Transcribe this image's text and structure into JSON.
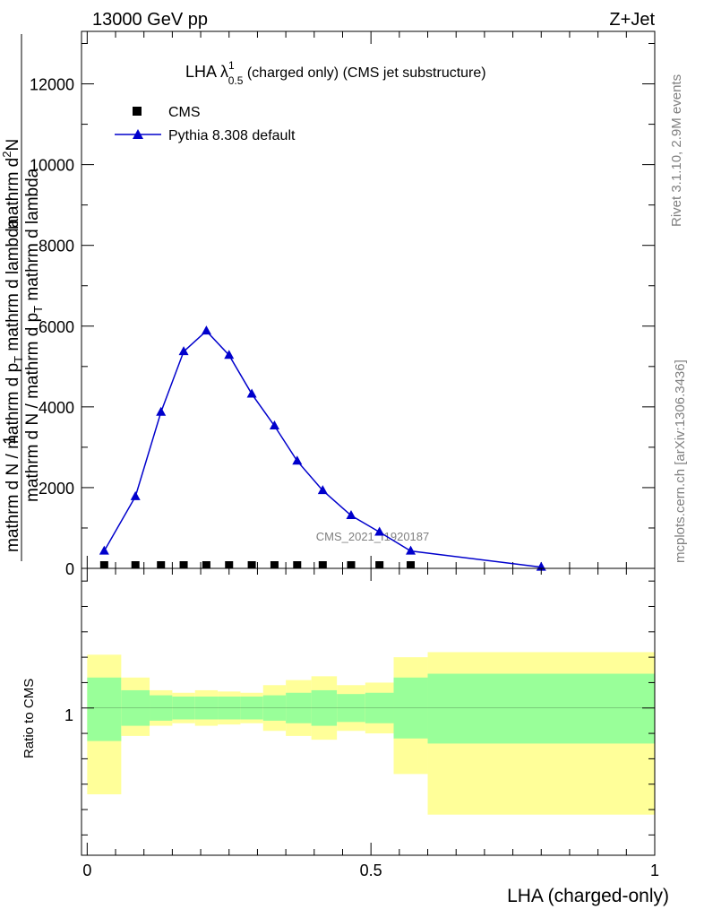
{
  "header": {
    "energy": "13000 GeV pp",
    "process": "Z+Jet"
  },
  "plot_title": {
    "base": "LHA λ",
    "sup": "1",
    "sub": "0.5",
    "rest": " (charged only) (CMS jet substructure)"
  },
  "side_labels": {
    "rivet": "Rivet 3.1.10,  2.9M events",
    "mcplots": "mcplots.cern.ch [arXiv:1306.3436]"
  },
  "watermark": "CMS_2021_I1920187",
  "y_label": {
    "numerator_one": "1",
    "numerator_frac": "mathrm d N / mathrm d p",
    "numerator_frac_sub": "T",
    "numerator_frac_tail": " mathrm d lambda",
    "denominator": "mathrm d N / mathrm d p",
    "denominator_sub": "T",
    "denominator_tail": " mathrm d lambda",
    "top_line": "mathrm d",
    "top_sup": "2",
    "top_tail": "N"
  },
  "ratio_ylabel": "Ratio to CMS",
  "x_label": "LHA (charged-only)",
  "colors": {
    "mc": "#0000cc",
    "data": "#000000",
    "band_inner": "#99ff99",
    "band_outer": "#ffff99"
  },
  "chart_data": [
    {
      "type": "line",
      "title": "LHA λ^1_0.5 (charged only) (CMS jet substructure)",
      "xlabel": "LHA (charged-only)",
      "ylabel": "1/(mathrm d N / mathrm d p_T mathrm d lambda) mathrm d^2N/(mathrm d p_T mathrm d lambda)",
      "xlim": [
        -0.01,
        1.0
      ],
      "ylim": [
        0,
        13300
      ],
      "yticks": [
        0,
        2000,
        4000,
        6000,
        8000,
        10000,
        12000
      ],
      "ytick_labels": [
        "0",
        "2000",
        "4000",
        "6000",
        "8000",
        "10000",
        "12000"
      ],
      "legend": {
        "placement": "top-left",
        "entries": [
          "CMS",
          "Pythia 8.308 default"
        ]
      },
      "series": [
        {
          "name": "CMS",
          "marker": "square",
          "x": [
            0.03,
            0.085,
            0.13,
            0.17,
            0.21,
            0.25,
            0.29,
            0.33,
            0.37,
            0.415,
            0.465,
            0.515,
            0.57
          ],
          "y": [
            20,
            20,
            20,
            20,
            20,
            20,
            20,
            20,
            20,
            20,
            20,
            20,
            20
          ]
        },
        {
          "name": "Pythia 8.308 default",
          "marker": "triangle",
          "x": [
            0.03,
            0.085,
            0.13,
            0.17,
            0.21,
            0.25,
            0.29,
            0.33,
            0.37,
            0.415,
            0.465,
            0.515,
            0.57,
            0.8
          ],
          "y": [
            430,
            1780,
            3870,
            5370,
            5880,
            5280,
            4320,
            3530,
            2660,
            1930,
            1310,
            900,
            430,
            30
          ]
        }
      ]
    },
    {
      "type": "area",
      "ylabel": "Ratio to CMS",
      "xlabel": "LHA (charged-only)",
      "xlim": [
        -0.01,
        1.0
      ],
      "ylim": [
        0.42,
        1.55
      ],
      "xticks": [
        0,
        0.5,
        1
      ],
      "xtick_labels": [
        "0",
        "0.5",
        "1"
      ],
      "yticks": [
        1
      ],
      "ytick_labels": [
        "1"
      ],
      "bins": [
        {
          "lo": 0.0,
          "hi": 0.06,
          "inner": [
            0.87,
            1.12
          ],
          "outer": [
            0.66,
            1.21
          ]
        },
        {
          "lo": 0.06,
          "hi": 0.11,
          "inner": [
            0.93,
            1.07
          ],
          "outer": [
            0.89,
            1.12
          ]
        },
        {
          "lo": 0.11,
          "hi": 0.15,
          "inner": [
            0.95,
            1.05
          ],
          "outer": [
            0.93,
            1.07
          ]
        },
        {
          "lo": 0.15,
          "hi": 0.19,
          "inner": [
            0.955,
            1.045
          ],
          "outer": [
            0.94,
            1.06
          ]
        },
        {
          "lo": 0.19,
          "hi": 0.23,
          "inner": [
            0.955,
            1.045
          ],
          "outer": [
            0.93,
            1.07
          ]
        },
        {
          "lo": 0.23,
          "hi": 0.27,
          "inner": [
            0.955,
            1.045
          ],
          "outer": [
            0.935,
            1.065
          ]
        },
        {
          "lo": 0.27,
          "hi": 0.31,
          "inner": [
            0.955,
            1.045
          ],
          "outer": [
            0.94,
            1.06
          ]
        },
        {
          "lo": 0.31,
          "hi": 0.35,
          "inner": [
            0.95,
            1.05
          ],
          "outer": [
            0.91,
            1.09
          ]
        },
        {
          "lo": 0.35,
          "hi": 0.395,
          "inner": [
            0.94,
            1.06
          ],
          "outer": [
            0.89,
            1.11
          ]
        },
        {
          "lo": 0.395,
          "hi": 0.44,
          "inner": [
            0.93,
            1.07
          ],
          "outer": [
            0.875,
            1.125
          ]
        },
        {
          "lo": 0.44,
          "hi": 0.49,
          "inner": [
            0.945,
            1.055
          ],
          "outer": [
            0.91,
            1.09
          ]
        },
        {
          "lo": 0.49,
          "hi": 0.54,
          "inner": [
            0.94,
            1.06
          ],
          "outer": [
            0.9,
            1.1
          ]
        },
        {
          "lo": 0.54,
          "hi": 0.6,
          "inner": [
            0.88,
            1.12
          ],
          "outer": [
            0.74,
            1.2
          ]
        },
        {
          "lo": 0.6,
          "hi": 1.0,
          "inner": [
            0.86,
            1.135
          ],
          "outer": [
            0.58,
            1.22
          ]
        }
      ]
    }
  ]
}
